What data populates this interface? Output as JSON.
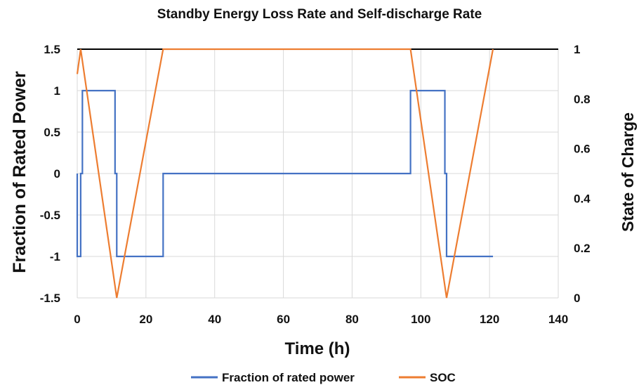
{
  "chart_data": {
    "type": "line",
    "title": "Standby Energy Loss Rate and Self-discharge Rate",
    "xlabel": "Time (h)",
    "ylabel": "Fraction of Rated Power",
    "y2label": "State of Charge",
    "xlim": [
      0,
      140
    ],
    "ylim": [
      -1.5,
      1.5
    ],
    "y2lim": [
      0,
      1
    ],
    "x_ticks": [
      "0",
      "20",
      "40",
      "60",
      "80",
      "100",
      "120",
      "140"
    ],
    "y_ticks": [
      "-1.5",
      "-1",
      "-0.5",
      "0",
      "0.5",
      "1",
      "1.5"
    ],
    "y2_ticks": [
      "0",
      "0.2",
      "0.4",
      "0.6",
      "0.8",
      "1"
    ],
    "grid": true,
    "legend_position": "bottom",
    "series": [
      {
        "name": "Fraction of rated power",
        "color": "#4472c4",
        "axis": "left",
        "x": [
          0,
          0,
          1,
          1,
          1.5,
          1.5,
          11,
          11,
          11.5,
          11.5,
          25,
          25,
          97,
          97,
          107,
          107,
          107.5,
          107.5,
          121
        ],
        "y": [
          0,
          -1,
          -1,
          0,
          0,
          1,
          1,
          0,
          0,
          -1,
          -1,
          0,
          0,
          1,
          1,
          0,
          0,
          -1,
          -1
        ]
      },
      {
        "name": "SOC",
        "color": "#ed7d31",
        "axis": "right",
        "x": [
          0,
          1,
          11.5,
          25,
          97,
          107.5,
          121
        ],
        "y": [
          0.9,
          1,
          0,
          1,
          1,
          0,
          1
        ]
      }
    ]
  }
}
